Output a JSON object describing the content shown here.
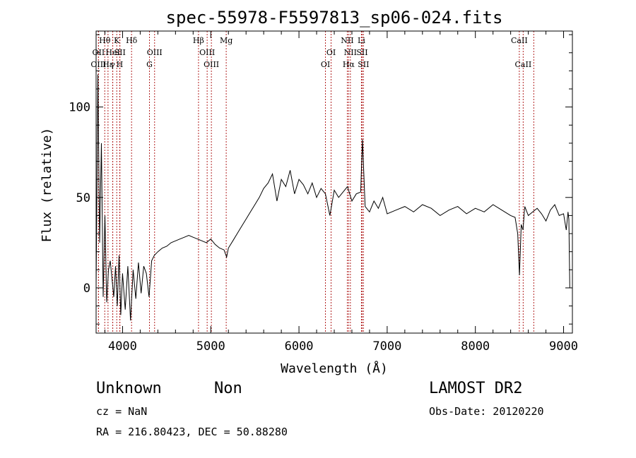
{
  "chart_data": {
    "type": "line",
    "title": "spec-55978-F5597813_sp06-024.fits",
    "xlabel": "Wavelength (Å)",
    "ylabel": "Flux (relative)",
    "xlim": [
      3700,
      9100
    ],
    "ylim": [
      -25,
      142
    ],
    "x_ticks": [
      4000,
      5000,
      6000,
      7000,
      8000,
      9000
    ],
    "y_ticks": [
      0,
      50,
      100
    ],
    "grid": false,
    "line_color": "#000000",
    "marker_color": "#b22222",
    "spectrum": {
      "x": [
        3700,
        3720,
        3740,
        3760,
        3780,
        3800,
        3820,
        3840,
        3860,
        3880,
        3900,
        3920,
        3940,
        3960,
        3980,
        4000,
        4030,
        4060,
        4090,
        4120,
        4150,
        4180,
        4210,
        4240,
        4270,
        4300,
        4330,
        4360,
        4400,
        4450,
        4500,
        4550,
        4600,
        4650,
        4700,
        4750,
        4800,
        4850,
        4900,
        4950,
        5000,
        5050,
        5100,
        5150,
        5180,
        5200,
        5250,
        5300,
        5350,
        5400,
        5450,
        5500,
        5550,
        5600,
        5650,
        5700,
        5750,
        5800,
        5850,
        5900,
        5950,
        6000,
        6050,
        6100,
        6150,
        6200,
        6250,
        6300,
        6350,
        6400,
        6450,
        6500,
        6550,
        6600,
        6650,
        6700,
        6720,
        6750,
        6800,
        6850,
        6900,
        6950,
        7000,
        7100,
        7200,
        7300,
        7400,
        7500,
        7600,
        7700,
        7800,
        7900,
        8000,
        8100,
        8200,
        8300,
        8400,
        8450,
        8480,
        8500,
        8520,
        8540,
        8560,
        8600,
        8650,
        8700,
        8750,
        8800,
        8850,
        8900,
        8950,
        9000,
        9030,
        9050,
        9060,
        9070
      ],
      "y": [
        0,
        118,
        25,
        80,
        -5,
        40,
        -8,
        10,
        15,
        5,
        -5,
        12,
        -10,
        18,
        -15,
        8,
        -12,
        12,
        -18,
        10,
        -6,
        14,
        -3,
        12,
        8,
        -5,
        15,
        18,
        20,
        22,
        23,
        25,
        26,
        27,
        28,
        29,
        28,
        27,
        26,
        25,
        27,
        24,
        22,
        21,
        17,
        22,
        26,
        30,
        34,
        38,
        42,
        46,
        50,
        55,
        58,
        63,
        48,
        60,
        56,
        65,
        52,
        60,
        57,
        52,
        58,
        50,
        55,
        52,
        40,
        54,
        50,
        53,
        56,
        48,
        52,
        53,
        82,
        45,
        42,
        48,
        44,
        50,
        41,
        43,
        45,
        42,
        46,
        44,
        40,
        43,
        45,
        41,
        44,
        42,
        46,
        43,
        40,
        39,
        30,
        7,
        35,
        32,
        45,
        40,
        42,
        44,
        41,
        37,
        43,
        46,
        40,
        41,
        32,
        42,
        38,
        0
      ]
    },
    "line_markers": [
      {
        "label": "Hθ",
        "x": 3798,
        "row": 0
      },
      {
        "label": "OII",
        "x": 3727,
        "row": 1
      },
      {
        "label": "OIII",
        "x": 3727,
        "row": 2
      },
      {
        "label": "HeI",
        "x": 3889,
        "row": 1
      },
      {
        "label": "Hε",
        "x": 3835,
        "row": 2
      },
      {
        "label": "γ",
        "x": 3888,
        "row": 2
      },
      {
        "label": "K",
        "x": 3934,
        "row": 0
      },
      {
        "label": "SII",
        "x": 3970,
        "row": 1
      },
      {
        "label": "H",
        "x": 3968,
        "row": 2
      },
      {
        "label": "Hδ",
        "x": 4102,
        "row": 0
      },
      {
        "label": "OIII",
        "x": 4363,
        "row": 1
      },
      {
        "label": "G",
        "x": 4305,
        "row": 2
      },
      {
        "label": "Hβ",
        "x": 4861,
        "row": 0
      },
      {
        "label": "OIII",
        "x": 4959,
        "row": 1
      },
      {
        "label": "OIII",
        "x": 5007,
        "row": 2
      },
      {
        "label": "Mg",
        "x": 5175,
        "row": 0
      },
      {
        "label": "OI",
        "x": 6364,
        "row": 1
      },
      {
        "label": "OI",
        "x": 6300,
        "row": 2
      },
      {
        "label": "NII",
        "x": 6548,
        "row": 0
      },
      {
        "label": "NII",
        "x": 6583,
        "row": 1
      },
      {
        "label": "Hα",
        "x": 6563,
        "row": 2
      },
      {
        "label": "Li",
        "x": 6708,
        "row": 0
      },
      {
        "label": "SII",
        "x": 6716,
        "row": 1
      },
      {
        "label": "SII",
        "x": 6731,
        "row": 2
      },
      {
        "label": "CaII",
        "x": 8498,
        "row": 0
      },
      {
        "label": "CaII",
        "x": 8542,
        "row": 2
      },
      {
        "label": "",
        "x": 8662,
        "row": 3
      }
    ]
  },
  "info": {
    "class_label": "Unknown",
    "subclass_label": "Non",
    "survey": "LAMOST DR2",
    "cz": "cz = NaN",
    "obs_date": "Obs-Date: 20120220",
    "coords": "RA = 216.80423, DEC =  50.88280"
  }
}
